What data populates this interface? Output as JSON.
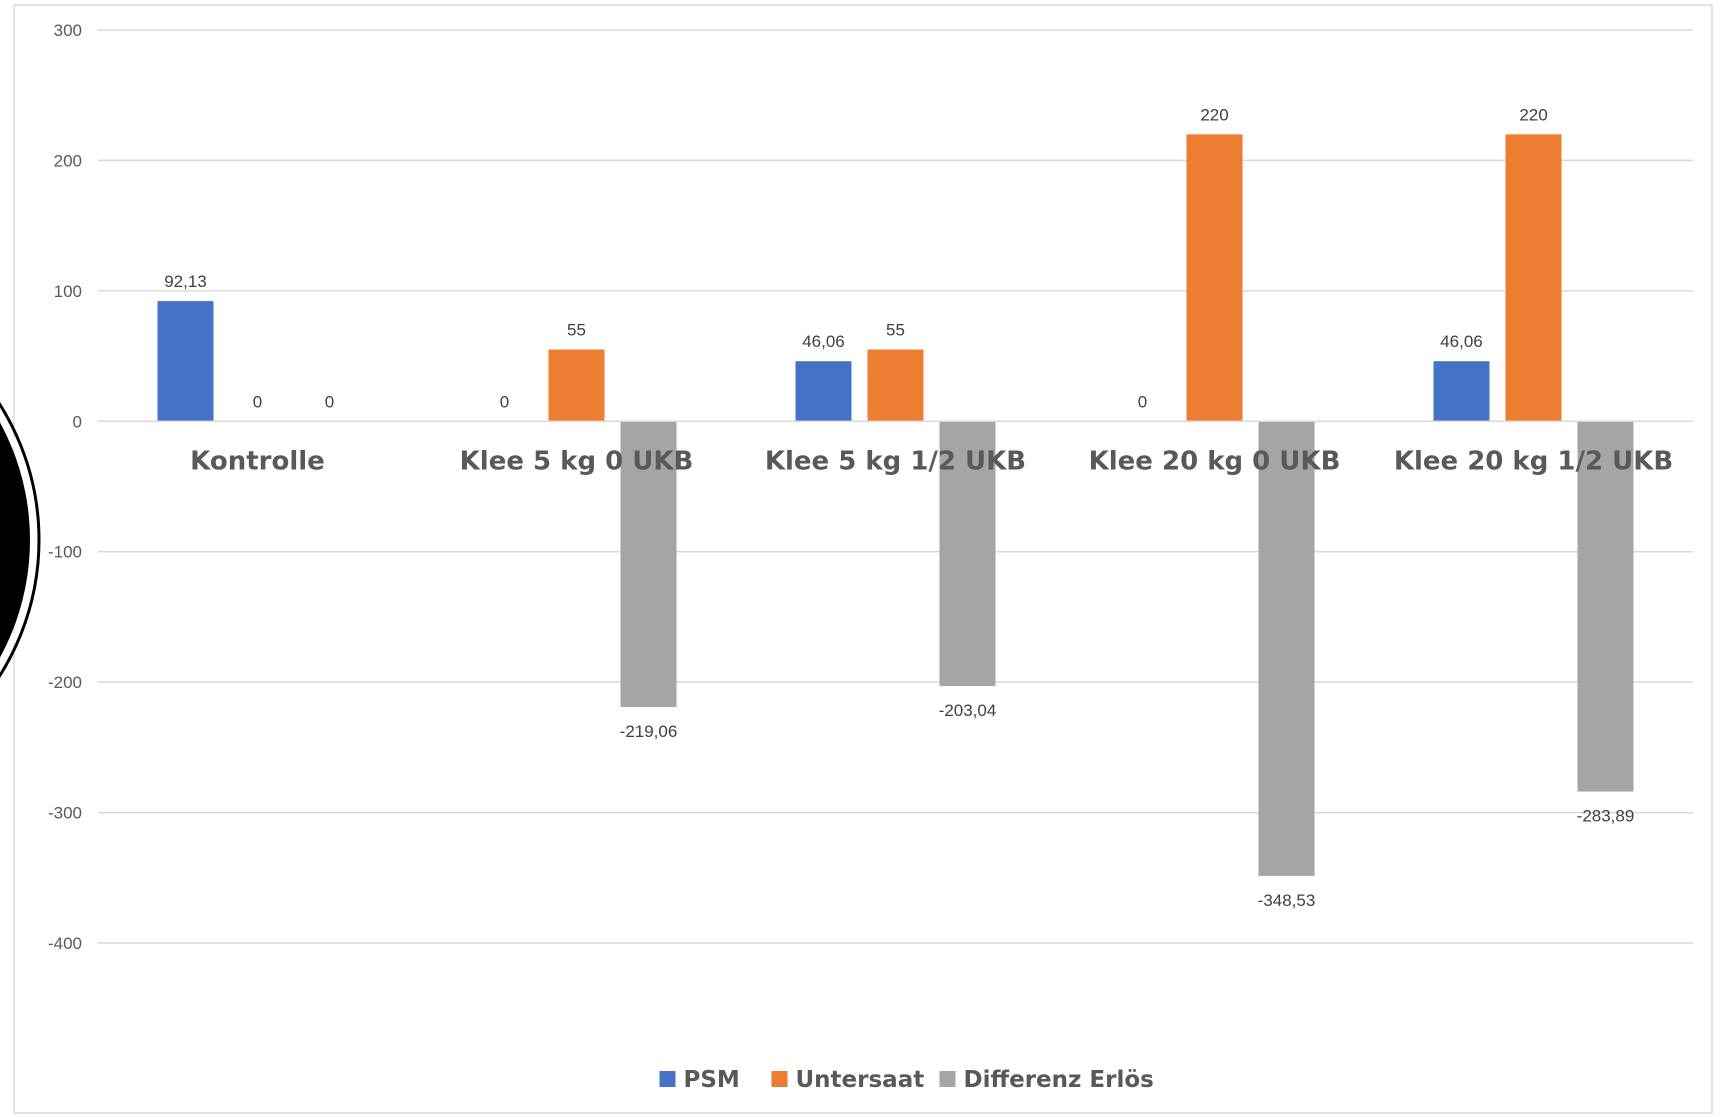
{
  "chart_data": {
    "type": "bar",
    "categories": [
      "Kontrolle",
      "Klee 5 kg 0 UKB",
      "Klee 5 kg 1/2 UKB",
      "Klee 20 kg 0 UKB",
      "Klee 20 kg 1/2 UKB"
    ],
    "series": [
      {
        "name": "PSM",
        "color": "#4472C4",
        "values": [
          92.13,
          0,
          46.06,
          0,
          46.06
        ],
        "labels": [
          "92,13",
          "0",
          "46,06",
          "0",
          "46,06"
        ]
      },
      {
        "name": "Untersaat",
        "color": "#ED7D31",
        "values": [
          0,
          55,
          55,
          220,
          220
        ],
        "labels": [
          "0",
          "55",
          "55",
          "220",
          "220"
        ]
      },
      {
        "name": "Differenz Erlös",
        "color": "#A5A5A5",
        "values": [
          0,
          -219.06,
          -203.04,
          -348.53,
          -283.89
        ],
        "labels": [
          "0",
          "-219,06",
          "-203,04",
          "-348,53",
          "-283,89"
        ]
      }
    ],
    "ylim": [
      -400,
      300
    ],
    "yticks": [
      300,
      200,
      100,
      0,
      -100,
      -200,
      -300,
      -400
    ],
    "ytick_labels": [
      "300",
      "200",
      "100",
      "0",
      "-100",
      "-200",
      "-300",
      "-400"
    ],
    "grid": true,
    "legend": "bottom-center",
    "title": "",
    "xlabel": "",
    "ylabel": ""
  }
}
